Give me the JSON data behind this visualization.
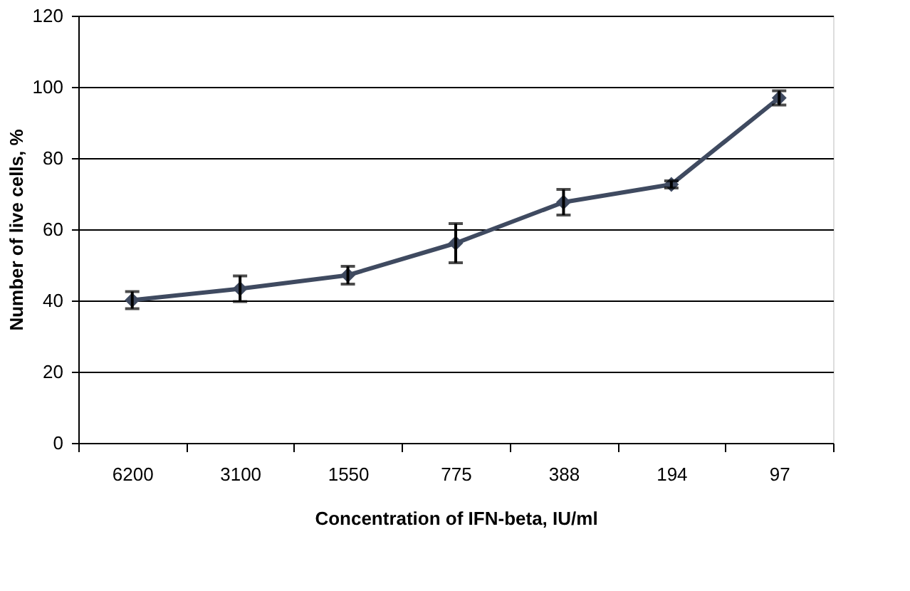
{
  "chart_data": {
    "type": "line",
    "xlabel": "Concentration of  IFN-beta, IU/ml",
    "ylabel": "Number of live cells, %",
    "categories": [
      "6200",
      "3100",
      "1550",
      "775",
      "388",
      "194",
      "97"
    ],
    "series": [
      {
        "color": "#3f4a60",
        "values": [
          40.1,
          43.3,
          47.1,
          56.1,
          67.6,
          72.6,
          96.9
        ],
        "errors": [
          2.4,
          3.6,
          2.5,
          5.5,
          3.6,
          1,
          2
        ]
      }
    ],
    "ylim": [
      0,
      120
    ],
    "yticks": [
      0,
      20,
      40,
      60,
      80,
      100,
      120
    ],
    "grid": "y",
    "marker": "diamond",
    "line_style": "solid"
  }
}
